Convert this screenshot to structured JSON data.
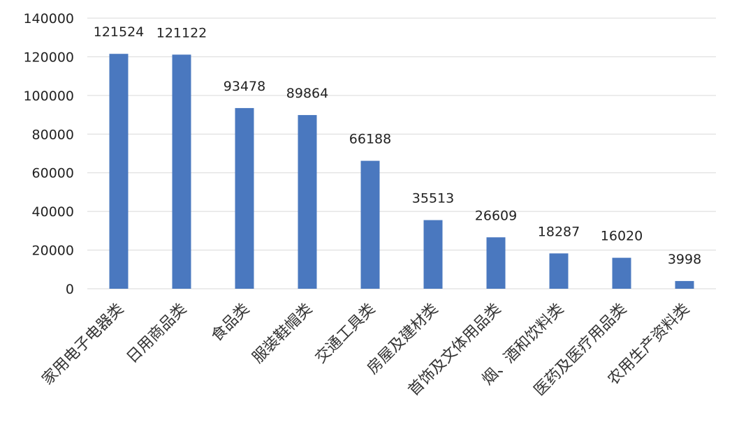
{
  "colors": {
    "bar": "#4a78bf",
    "grid": "#d9d9d9"
  },
  "chart_data": {
    "type": "bar",
    "categories": [
      "家用电子电器类",
      "日用商品类",
      "食品类",
      "服装鞋帽类",
      "交通工具类",
      "房屋及建材类",
      "首饰及文体用品类",
      "烟、酒和饮料类",
      "医药及医疗用品类",
      "农用生产资料类"
    ],
    "values": [
      121524,
      121122,
      93478,
      89864,
      66188,
      35513,
      26609,
      18287,
      16020,
      3998
    ],
    "data_labels": [
      "121524",
      "121122",
      "93478",
      "89864",
      "66188",
      "35513",
      "26609",
      "18287",
      "16020",
      "3998"
    ],
    "yticks": [
      0,
      20000,
      40000,
      60000,
      80000,
      100000,
      120000,
      140000
    ],
    "ytick_labels": [
      "0",
      "20000",
      "40000",
      "60000",
      "80000",
      "100000",
      "120000",
      "140000"
    ],
    "ylim": [
      0,
      140000
    ],
    "grid": true,
    "title": "",
    "xlabel": "",
    "ylabel": ""
  }
}
